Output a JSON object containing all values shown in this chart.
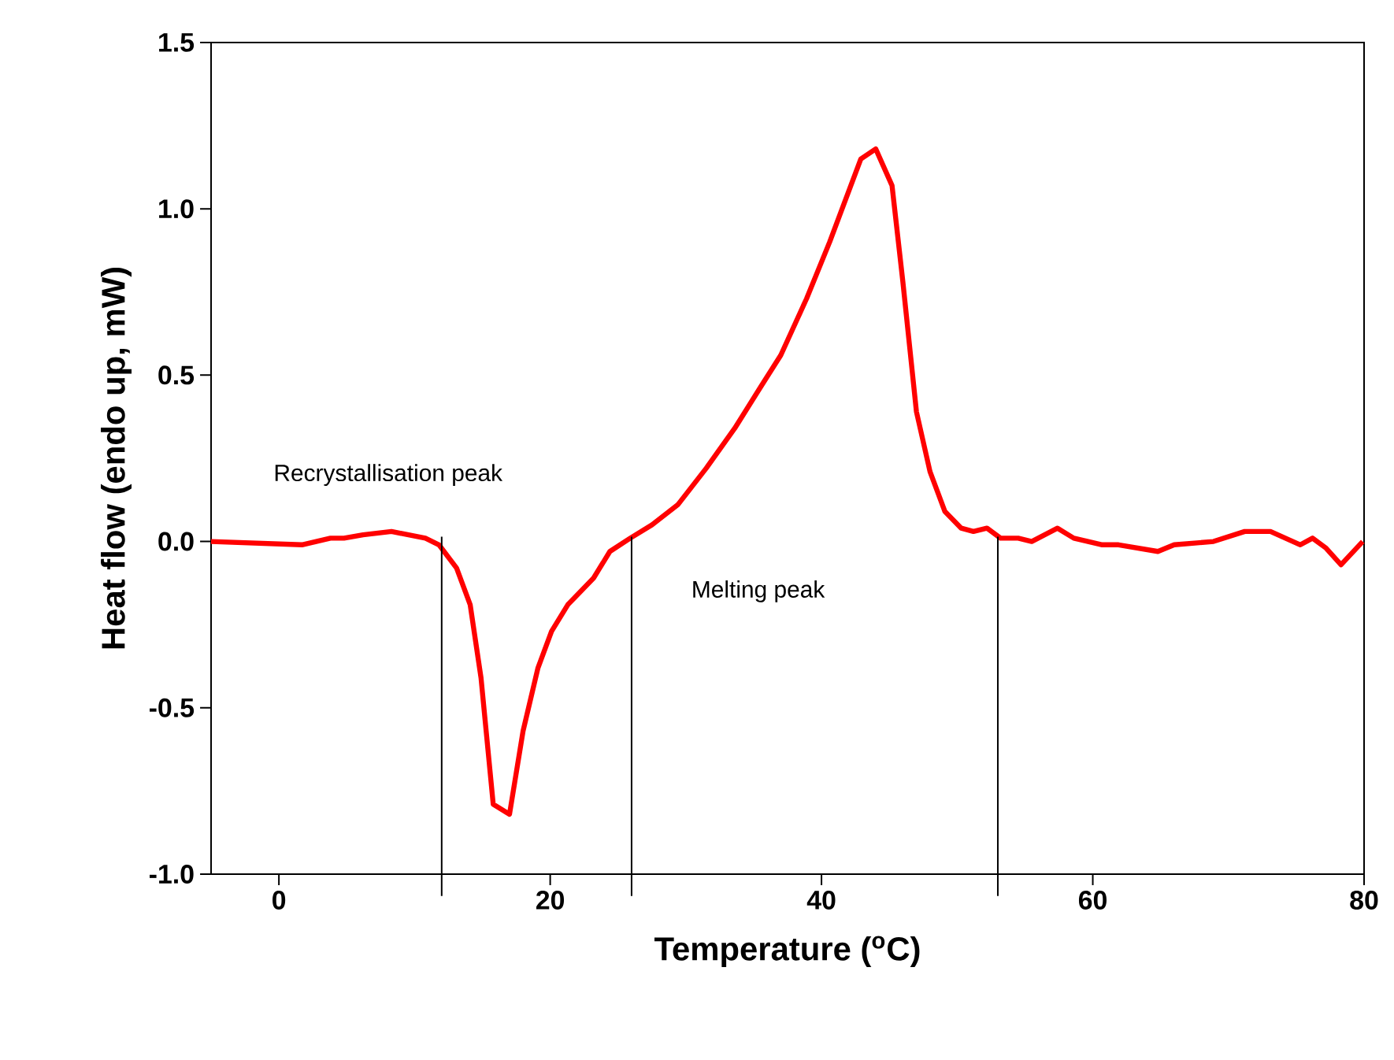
{
  "chart_data": {
    "type": "line",
    "xlabel": "Temperature ($^{o}$C)",
    "ylabel": "Heat flow (endo up, mW)",
    "xlim": [
      -5,
      80
    ],
    "xticks": [
      0,
      20,
      40,
      60,
      80
    ],
    "ylim": [
      -1.0,
      1.5
    ],
    "yticks": [
      {
        "value": -1.0,
        "label": "-1.0"
      },
      {
        "value": -0.5,
        "label": "-0.5"
      },
      {
        "value": 0,
        "label": "0.0"
      },
      {
        "value": 0.5,
        "label": "0.5"
      },
      {
        "value": 1.0,
        "label": "1.0"
      },
      {
        "value": 1.5,
        "label": "1.5"
      }
    ],
    "grid": false,
    "marker": "none",
    "line_style": "solid",
    "annotations": [
      "Recrystallisation peak",
      "Melting peak"
    ],
    "ref_lines": [
      {
        "axis": "x",
        "value": 12,
        "color": "#000000"
      },
      {
        "axis": "x",
        "value": 26,
        "color": "#000000"
      },
      {
        "axis": "x",
        "value": 53,
        "color": "#000000"
      }
    ],
    "series": [
      {
        "color": "#ff0000",
        "x": [
          -5,
          1.7,
          3.8,
          4.8,
          6.2,
          8.3,
          10.8,
          11.8,
          13.1,
          14.1,
          14.9,
          15.8,
          17.0,
          18.0,
          19.1,
          20.1,
          21.3,
          23.2,
          24.4,
          25.9,
          27.5,
          29.4,
          31.5,
          33.6,
          35.6,
          37.0,
          38.9,
          40.6,
          42.9,
          44.0,
          45.2,
          46.0,
          47.0,
          48.0,
          49.1,
          50.3,
          51.2,
          52.2,
          53.2,
          54.5,
          55.5,
          57.4,
          58.6,
          60.7,
          61.9,
          64.8,
          66.0,
          68.9,
          71.2,
          73.1,
          75.3,
          76.2,
          77.2,
          78.3,
          79.9
        ],
        "values": [
          0,
          -0.01,
          0.01,
          0.01,
          0.02,
          0.03,
          0.01,
          -0.01,
          -0.08,
          -0.19,
          -0.41,
          -0.79,
          -0.82,
          -0.57,
          -0.38,
          -0.27,
          -0.19,
          -0.11,
          -0.03,
          0.01,
          0.05,
          0.11,
          0.22,
          0.34,
          0.47,
          0.56,
          0.73,
          0.9,
          1.15,
          1.18,
          1.07,
          0.78,
          0.39,
          0.21,
          0.09,
          0.04,
          0.03,
          0.04,
          0.01,
          0.01,
          0,
          0.04,
          0.01,
          -0.01,
          -0.01,
          -0.03,
          -0.01,
          0,
          0.03,
          0.03,
          -0.01,
          0.01,
          -0.02,
          -0.07,
          0
        ]
      }
    ]
  }
}
